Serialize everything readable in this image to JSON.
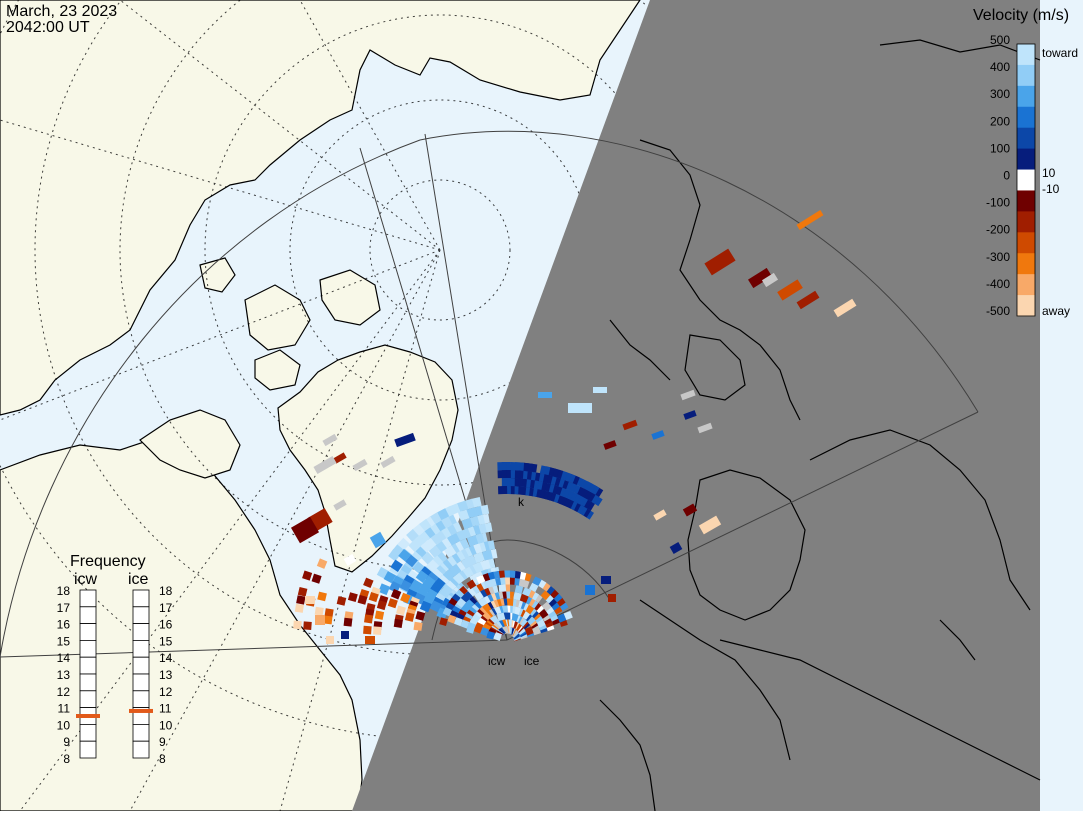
{
  "header": {
    "date": "March, 23 2023",
    "time": "2042:00 UT"
  },
  "colors": {
    "ocean": "#e8f4fc",
    "land": "#f8f8e8",
    "night": "#808080",
    "coast": "#000000"
  },
  "legend": {
    "title": "Velocity (m/s)",
    "ticks": [
      "500",
      "400",
      "300",
      "200",
      "100",
      "0",
      "-100",
      "-200",
      "-300",
      "-400",
      "-500"
    ],
    "toward_label": "toward",
    "away_label": "away",
    "pos_small": "10",
    "neg_small": "-10",
    "stops": [
      "#bfe4fb",
      "#91cdf6",
      "#4aa4ea",
      "#1a73d3",
      "#0c47a8",
      "#061d7c",
      "#ffffff",
      "#6f0000",
      "#a01e00",
      "#cf4a00",
      "#f0780d",
      "#f8a968",
      "#fbd6b0"
    ]
  },
  "frequency": {
    "title": "Frequency",
    "radars": [
      {
        "label": "icw",
        "value": 10.5
      },
      {
        "label": "ice",
        "value": 10.8
      }
    ],
    "ticks": [
      "18",
      "17",
      "16",
      "15",
      "14",
      "13",
      "12",
      "11",
      "10",
      "9",
      "8"
    ],
    "marker_color": "#e25a1a"
  },
  "sites": [
    {
      "label": "icw"
    },
    {
      "label": "ice"
    }
  ],
  "grid_label": "k"
}
